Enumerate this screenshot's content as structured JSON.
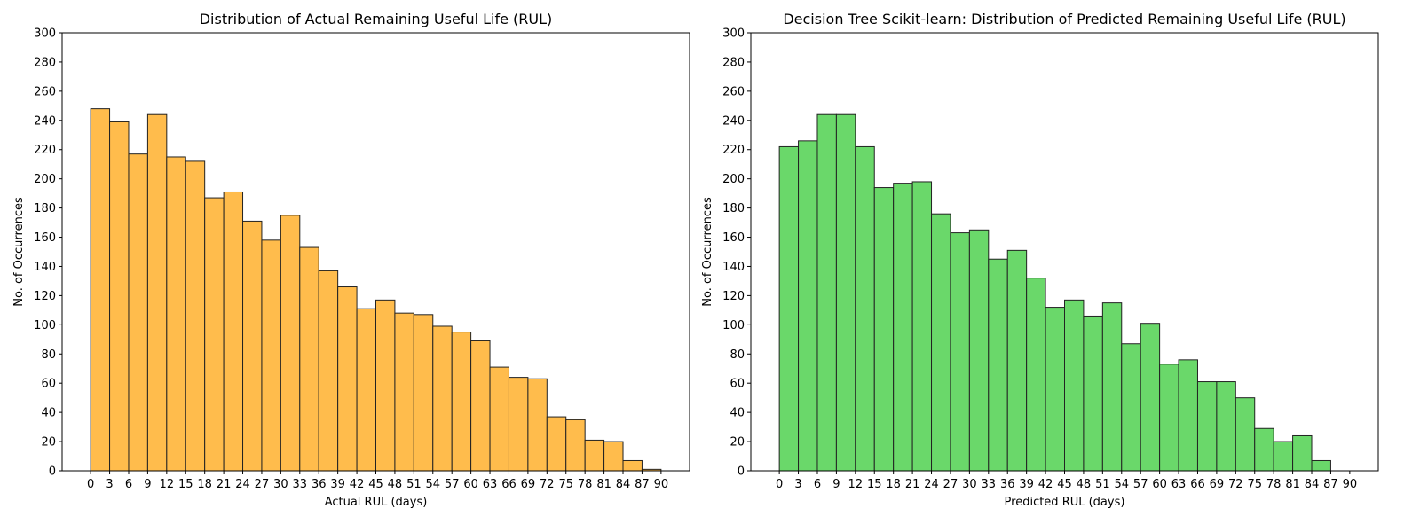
{
  "chart_data": [
    {
      "type": "bar",
      "title": "Distribution of Actual Remaining Useful Life (RUL)",
      "xlabel": "Actual RUL (days)",
      "ylabel": "No. of Occurrences",
      "color": "#ffbc4c",
      "edge_color": "#222222",
      "bin_width": 3,
      "bin_starts": [
        0,
        3,
        6,
        9,
        12,
        15,
        18,
        21,
        24,
        27,
        30,
        33,
        36,
        39,
        42,
        45,
        48,
        51,
        54,
        57,
        60,
        63,
        66,
        69,
        72,
        75,
        78,
        81,
        84,
        87
      ],
      "values": [
        248,
        239,
        217,
        244,
        215,
        212,
        187,
        191,
        171,
        158,
        175,
        153,
        137,
        126,
        111,
        117,
        108,
        107,
        99,
        95,
        89,
        71,
        64,
        63,
        37,
        35,
        21,
        20,
        7,
        1
      ],
      "xticks": [
        0,
        3,
        6,
        9,
        12,
        15,
        18,
        21,
        24,
        27,
        30,
        33,
        36,
        39,
        42,
        45,
        48,
        51,
        54,
        57,
        60,
        63,
        66,
        69,
        72,
        75,
        78,
        81,
        84,
        87,
        90
      ],
      "yticks": [
        0,
        20,
        40,
        60,
        80,
        100,
        120,
        140,
        160,
        180,
        200,
        220,
        240,
        260,
        280,
        300
      ],
      "xlim": [
        -4.5,
        94.5
      ],
      "ylim": [
        0,
        300
      ],
      "grid": false
    },
    {
      "type": "bar",
      "title": "Decision Tree Scikit-learn: Distribution of Predicted Remaining Useful Life (RUL)",
      "xlabel": "Predicted RUL (days)",
      "ylabel": "No. of Occurrences",
      "color": "#6ad86a",
      "edge_color": "#222222",
      "bin_width": 3,
      "bin_starts": [
        0,
        3,
        6,
        9,
        12,
        15,
        18,
        21,
        24,
        27,
        30,
        33,
        36,
        39,
        42,
        45,
        48,
        51,
        54,
        57,
        60,
        63,
        66,
        69,
        72,
        75,
        78,
        81,
        84
      ],
      "values": [
        222,
        226,
        244,
        244,
        222,
        194,
        197,
        198,
        176,
        163,
        165,
        145,
        151,
        132,
        112,
        117,
        106,
        115,
        87,
        101,
        73,
        76,
        61,
        61,
        50,
        29,
        20,
        24,
        7
      ],
      "xticks": [
        0,
        3,
        6,
        9,
        12,
        15,
        18,
        21,
        24,
        27,
        30,
        33,
        36,
        39,
        42,
        45,
        48,
        51,
        54,
        57,
        60,
        63,
        66,
        69,
        72,
        75,
        78,
        81,
        84,
        87,
        90
      ],
      "yticks": [
        0,
        20,
        40,
        60,
        80,
        100,
        120,
        140,
        160,
        180,
        200,
        220,
        240,
        260,
        280,
        300
      ],
      "xlim": [
        -4.5,
        94.5
      ],
      "ylim": [
        0,
        300
      ],
      "grid": false
    }
  ]
}
